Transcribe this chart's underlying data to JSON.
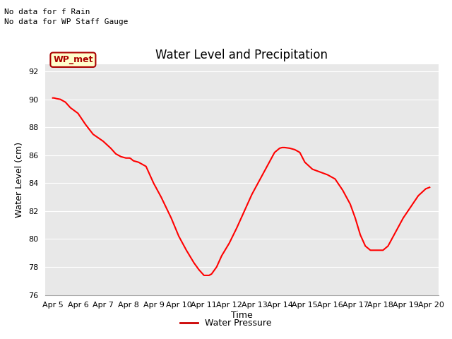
{
  "title": "Water Level and Precipitation",
  "xlabel": "Time",
  "ylabel": "Water Level (cm)",
  "ylim": [
    76,
    92.5
  ],
  "yticks": [
    76,
    78,
    80,
    82,
    84,
    86,
    88,
    90,
    92
  ],
  "x_labels": [
    "Apr 5",
    "Apr 6",
    "Apr 7",
    "Apr 8",
    "Apr 9",
    "Apr 10",
    "Apr 11",
    "Apr 12",
    "Apr 13",
    "Apr 14",
    "Apr 15",
    "Apr 16",
    "Apr 17",
    "Apr 18",
    "Apr 19",
    "Apr 20"
  ],
  "x_tick_positions": [
    5,
    6,
    7,
    8,
    9,
    10,
    11,
    12,
    13,
    14,
    15,
    16,
    17,
    18,
    19,
    20
  ],
  "xlim": [
    4.7,
    20.3
  ],
  "x_data": [
    5.0,
    5.05,
    5.15,
    5.3,
    5.5,
    5.7,
    6.0,
    6.3,
    6.6,
    7.0,
    7.3,
    7.5,
    7.7,
    7.9,
    8.0,
    8.05,
    8.1,
    8.2,
    8.4,
    8.7,
    9.0,
    9.3,
    9.7,
    10.0,
    10.3,
    10.6,
    10.8,
    11.0,
    11.1,
    11.2,
    11.3,
    11.5,
    11.7,
    12.0,
    12.3,
    12.6,
    12.9,
    13.2,
    13.5,
    13.8,
    14.0,
    14.1,
    14.2,
    14.4,
    14.6,
    14.8,
    15.0,
    15.3,
    15.6,
    15.9,
    16.2,
    16.5,
    16.8,
    17.0,
    17.2,
    17.4,
    17.6,
    17.8,
    17.9,
    18.0,
    18.05,
    18.1,
    18.3,
    18.6,
    18.9,
    19.2,
    19.5,
    19.8,
    19.95
  ],
  "y_data": [
    90.1,
    90.1,
    90.05,
    90.0,
    89.8,
    89.4,
    89.0,
    88.2,
    87.5,
    87.0,
    86.5,
    86.1,
    85.9,
    85.8,
    85.8,
    85.8,
    85.75,
    85.6,
    85.5,
    85.2,
    84.0,
    83.0,
    81.5,
    80.2,
    79.2,
    78.3,
    77.8,
    77.4,
    77.4,
    77.4,
    77.5,
    78.0,
    78.8,
    79.7,
    80.8,
    82.0,
    83.2,
    84.2,
    85.2,
    86.2,
    86.5,
    86.55,
    86.55,
    86.5,
    86.4,
    86.2,
    85.5,
    85.0,
    84.8,
    84.6,
    84.3,
    83.5,
    82.5,
    81.5,
    80.3,
    79.5,
    79.2,
    79.2,
    79.2,
    79.2,
    79.2,
    79.2,
    79.5,
    80.5,
    81.5,
    82.3,
    83.1,
    83.6,
    83.7
  ],
  "line_color": "#ff0000",
  "line_width": 1.5,
  "bg_color": "#e8e8e8",
  "grid_color": "#ffffff",
  "legend_label": "Water Pressure",
  "legend_line_color": "#cc0000",
  "annotation_text1": "No data for f Rain",
  "annotation_text2": "No data for WP Staff Gauge",
  "wp_met_label": "WP_met",
  "wp_met_bg": "#ffffcc",
  "wp_met_border": "#aa0000",
  "wp_met_text_color": "#aa0000",
  "title_fontsize": 12,
  "axis_label_fontsize": 9,
  "tick_fontsize": 8,
  "annot_fontsize": 8
}
